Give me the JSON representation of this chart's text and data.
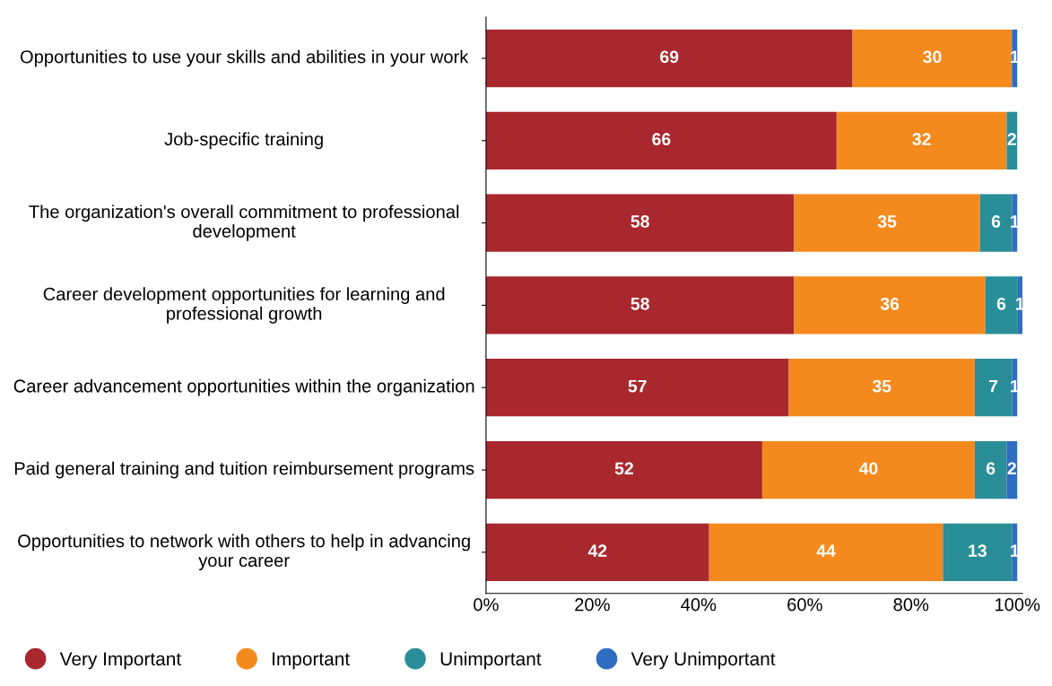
{
  "chart_data": {
    "type": "bar",
    "orientation": "horizontal",
    "stacked": true,
    "categories": [
      "Opportunities to use your skills and abilities in your work",
      "Job-specific training",
      "The organization's overall commitment to professional development",
      "Career development opportunities for learning and professional growth",
      "Career advancement opportunities within the organization",
      "Paid general training and tuition reimbursement programs",
      "Opportunities to network with others to help in advancing your career"
    ],
    "series": [
      {
        "name": "Very Important",
        "color": "#a8282e",
        "values": [
          69,
          66,
          58,
          58,
          57,
          52,
          42
        ],
        "value_labels": [
          "69",
          "66",
          "58",
          "58",
          "57",
          "52",
          "42"
        ]
      },
      {
        "name": "Important",
        "color": "#f48a1e",
        "values": [
          30,
          32,
          35,
          36,
          35,
          40,
          44
        ],
        "value_labels": [
          "30",
          "32",
          "35",
          "36",
          "35",
          "40",
          "44"
        ]
      },
      {
        "name": "Unimportant",
        "color": "#2a8e98",
        "values": [
          0,
          2,
          6,
          6,
          7,
          6,
          13
        ],
        "value_labels": [
          null,
          "2",
          "6",
          "6",
          "7",
          "6",
          "13"
        ]
      },
      {
        "name": "Very Unimportant",
        "color": "#2f6dc0",
        "values": [
          1,
          0,
          1,
          1,
          1,
          2,
          1
        ],
        "value_labels": [
          "1",
          null,
          "1",
          "1",
          "1",
          "2",
          "1"
        ]
      }
    ],
    "xlim": [
      0,
      101
    ],
    "xticks": [
      {
        "value": 0,
        "label": "0%"
      },
      {
        "value": 20,
        "label": "20%"
      },
      {
        "value": 40,
        "label": "40%"
      },
      {
        "value": 60,
        "label": "60%"
      },
      {
        "value": 80,
        "label": "80%"
      },
      {
        "value": 100,
        "label": "100%"
      }
    ],
    "grid": false,
    "legend": "bottom",
    "marker": "circle"
  }
}
